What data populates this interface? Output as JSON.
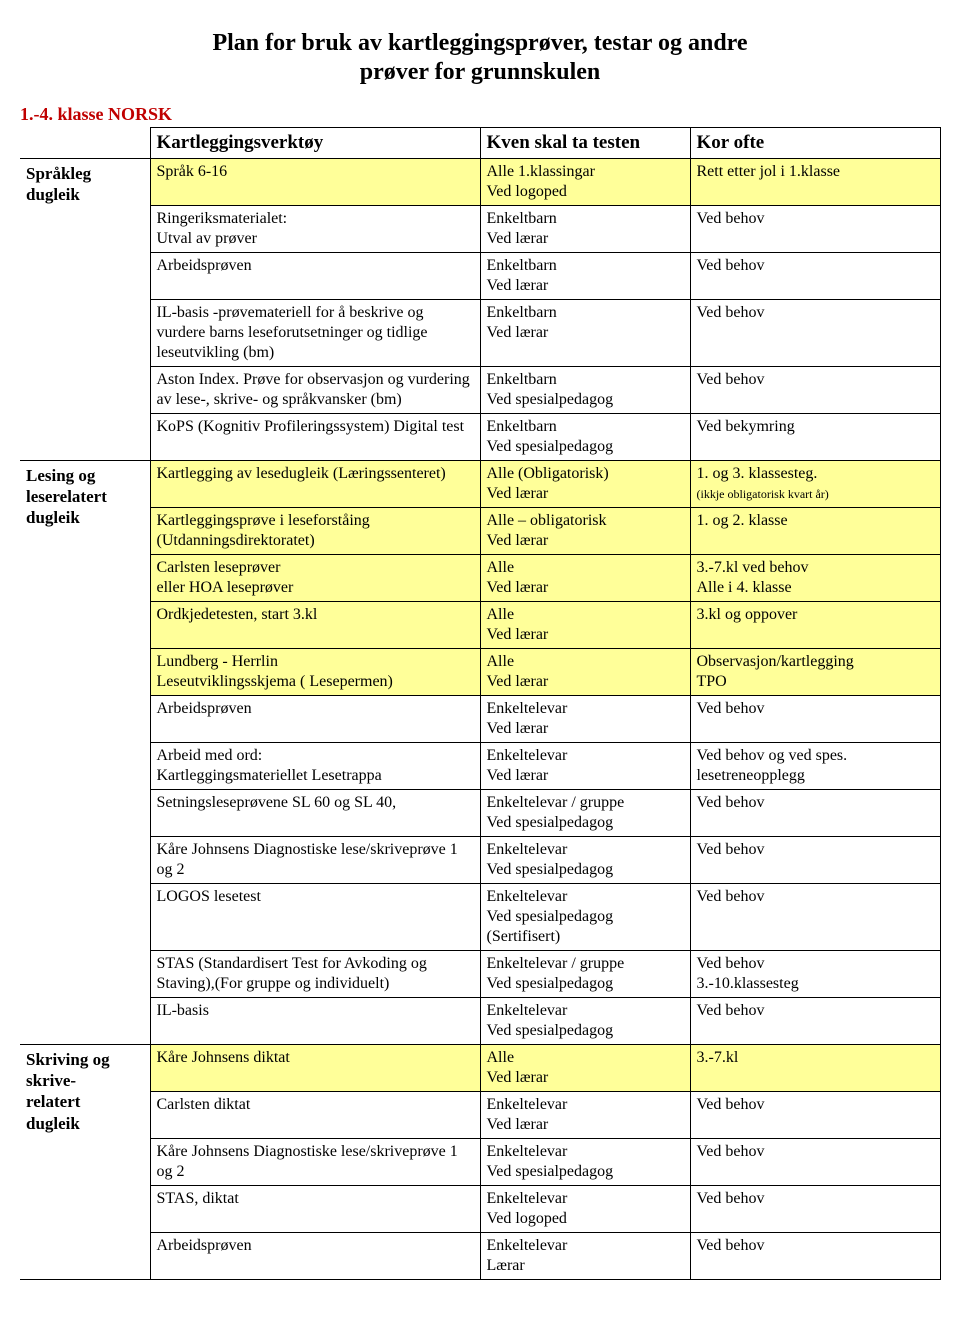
{
  "title_line1": "Plan for bruk av kartleggingsprøver, testar og andre",
  "title_line2": "prøver for grunnskulen",
  "section_label": "1.-4. klasse   NORSK",
  "headers": {
    "col1": "Kartleggingsverktøy",
    "col2": "Kven skal ta testen",
    "col3": "Kor ofte"
  },
  "side_labels": {
    "spraak": "Språkleg dugleik",
    "lesing": "Lesing og leserelatert dugleik",
    "skriving": "Skriving og skrive-relatert dugleik"
  },
  "rows": [
    {
      "yellow": true,
      "c1": "Språk 6-16",
      "c2": "Alle 1.klassingar\nVed logoped",
      "c3": "Rett etter jol i 1.klasse"
    },
    {
      "yellow": false,
      "c1": "Ringeriksmaterialet:\nUtval av prøver",
      "c2": "Enkeltbarn\nVed lærar",
      "c3": "Ved behov"
    },
    {
      "yellow": false,
      "c1": "Arbeidsprøven",
      "c2": "Enkeltbarn\nVed lærar",
      "c3": "Ved behov"
    },
    {
      "yellow": false,
      "c1": "IL-basis -prøvemateriell for å beskrive og vurdere barns leseforutsetninger og tidlige leseutvikling (bm)",
      "c2": "Enkeltbarn\nVed lærar",
      "c3": "Ved behov"
    },
    {
      "yellow": false,
      "c1": "Aston Index. Prøve for observasjon og vurdering av lese-, skrive- og språkvansker (bm)",
      "c2": "Enkeltbarn\nVed spesialpedagog",
      "c3": "Ved behov"
    },
    {
      "yellow": false,
      "c1": "KoPS (Kognitiv Profileringssystem) Digital test",
      "c2": "Enkeltbarn\nVed spesialpedagog",
      "c3": "Ved bekymring"
    },
    {
      "yellow": true,
      "c1": "Kartlegging av lesedugleik (Læringssenteret)",
      "c2": "Alle (Obligatorisk)\nVed lærar",
      "c3": "1. og 3. klassesteg.",
      "c3_note": "(ikkje obligatorisk kvart år)"
    },
    {
      "yellow": true,
      "c1": "Kartleggingsprøve i leseforståing (Utdanningsdirektoratet)",
      "c2": "Alle – obligatorisk\nVed lærar",
      "c3": "1. og 2. klasse"
    },
    {
      "yellow": true,
      "c1": "Carlsten leseprøver\neller  HOA leseprøver",
      "c2": "Alle\nVed lærar",
      "c3": "3.-7.kl ved behov\nAlle i 4. klasse"
    },
    {
      "yellow": true,
      "c1": "Ordkjedetesten, start 3.kl",
      "c2": "Alle\nVed lærar",
      "c3": "3.kl og oppover"
    },
    {
      "yellow": true,
      "c1": "Lundberg - Herrlin\nLeseutviklingsskjema ( Lesepermen)",
      "c2": "Alle\nVed lærar",
      "c3": "Observasjon/kartlegging\nTPO"
    },
    {
      "yellow": false,
      "c1": "Arbeidsprøven",
      "c2": "Enkeltelevar\nVed lærar",
      "c3": "Ved behov"
    },
    {
      "yellow": false,
      "c1": "Arbeid med ord:\nKartleggingsmateriellet Lesetrappa",
      "c2": "Enkeltelevar\nVed lærar",
      "c3": "Ved behov og ved spes. lesetreneopplegg"
    },
    {
      "yellow": false,
      "c1": "Setningsleseprøvene SL 60 og SL 40,",
      "c2": "Enkeltelevar / gruppe\nVed spesialpedagog",
      "c3": "Ved behov"
    },
    {
      "yellow": false,
      "c1": "Kåre Johnsens Diagnostiske lese/skriveprøve 1 og 2",
      "c2": "Enkeltelevar\nVed spesialpedagog",
      "c3": "Ved behov"
    },
    {
      "yellow": false,
      "c1": "LOGOS lesetest",
      "c2": "Enkeltelevar\nVed spesialpedagog\n(Sertifisert)",
      "c3": "Ved behov"
    },
    {
      "yellow": false,
      "c1": "STAS (Standardisert Test for Avkoding og Staving),(For gruppe og individuelt)",
      "c2": "Enkeltelevar / gruppe\nVed spesialpedagog",
      "c3": "Ved behov\n3.-10.klassesteg"
    },
    {
      "yellow": false,
      "c1": "IL-basis",
      "c2": "Enkeltelevar\nVed spesialpedagog",
      "c3": "Ved behov"
    },
    {
      "yellow": true,
      "c1": "Kåre Johnsens diktat",
      "c2": "Alle\nVed lærar",
      "c3": "3.-7.kl"
    },
    {
      "yellow": false,
      "c1": "Carlsten diktat",
      "c2": "Enkeltelevar\nVed lærar",
      "c3": "Ved behov"
    },
    {
      "yellow": false,
      "c1": "Kåre Johnsens Diagnostiske lese/skriveprøve 1 og 2",
      "c2": "Enkeltelevar\nVed spesialpedagog",
      "c3": "Ved behov"
    },
    {
      "yellow": false,
      "c1": "STAS, diktat",
      "c2": "Enkeltelevar\nVed logoped",
      "c3": "Ved behov"
    },
    {
      "yellow": false,
      "c1": "Arbeidsprøven",
      "c2": "Enkeltelevar\nLærar",
      "c3": "Ved behov"
    }
  ],
  "lesing_start": 6,
  "skriving_start": 18
}
